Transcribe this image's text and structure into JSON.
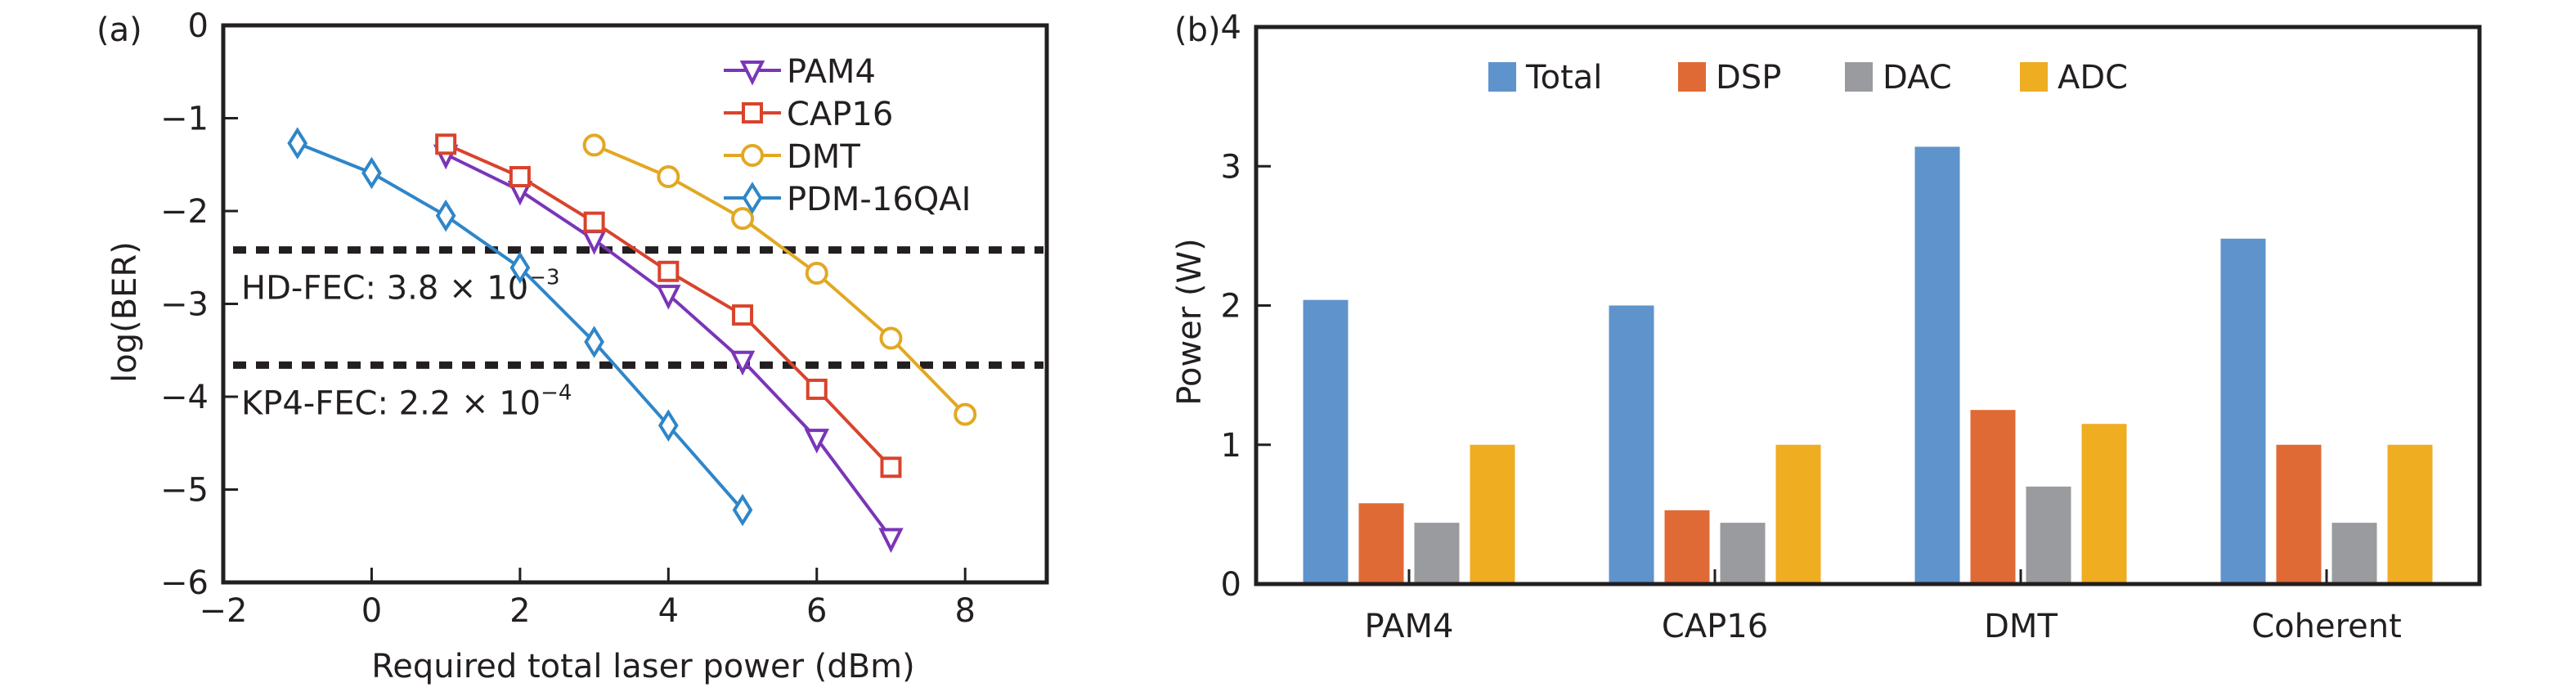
{
  "chart_data": [
    {
      "panel_label": "(a)",
      "type": "line",
      "title": "",
      "xlabel": "Required total laser power (dBm)",
      "ylabel": "log(BER)",
      "xlim": [
        -2,
        9.1
      ],
      "ylim": [
        -6,
        0
      ],
      "xticks": [
        -2,
        0,
        2,
        4,
        6,
        8
      ],
      "xtick_labels": [
        "−2",
        "0",
        "2",
        "4",
        "6",
        "8"
      ],
      "yticks": [
        0,
        -1,
        -2,
        -3,
        -4,
        -5,
        -6
      ],
      "ytick_labels": [
        "0",
        "−1",
        "−2",
        "−3",
        "−4",
        "−5",
        "−6"
      ],
      "grid": false,
      "legend_position": "top-right",
      "series": [
        {
          "name": "PAM4",
          "marker": "triangle-down",
          "color": "#7b35b8",
          "x": [
            1,
            2,
            3,
            4,
            5,
            6,
            7
          ],
          "y": [
            -1.39,
            -1.78,
            -2.31,
            -2.9,
            -3.61,
            -4.45,
            -5.52
          ]
        },
        {
          "name": "CAP16",
          "marker": "square",
          "color": "#d9432c",
          "x": [
            1,
            2,
            3,
            4,
            5,
            6,
            7
          ],
          "y": [
            -1.28,
            -1.63,
            -2.12,
            -2.65,
            -3.12,
            -3.92,
            -4.76
          ]
        },
        {
          "name": "DMT",
          "marker": "circle",
          "color": "#e2a823",
          "x": [
            3,
            4,
            5,
            6,
            7,
            8
          ],
          "y": [
            -1.29,
            -1.63,
            -2.08,
            -2.67,
            -3.37,
            -4.19
          ]
        },
        {
          "name": "PDM-16QAI",
          "marker": "diamond",
          "color": "#2f86c8",
          "x": [
            -1,
            0,
            1,
            2,
            3,
            4,
            5
          ],
          "y": [
            -1.27,
            -1.59,
            -2.05,
            -2.61,
            -3.41,
            -4.31,
            -5.22
          ]
        }
      ],
      "reference_lines": [
        {
          "name": "HD-FEC",
          "y": -2.42,
          "label_prefix": "HD-FEC: 3.8 × 10",
          "label_exp": "−3",
          "style": "dashed",
          "color": "#231f20"
        },
        {
          "name": "KP4-FEC",
          "y": -3.66,
          "label_prefix": "KP4-FEC: 2.2 × 10",
          "label_exp": "−4",
          "style": "dashed",
          "color": "#231f20"
        }
      ]
    },
    {
      "panel_label": "(b)",
      "type": "bar",
      "title": "",
      "xlabel": "",
      "ylabel": "Power (W)",
      "ylim": [
        0,
        4
      ],
      "yticks": [
        0,
        1,
        2,
        3,
        4
      ],
      "ytick_labels": [
        "0",
        "1",
        "2",
        "3",
        "4"
      ],
      "grid": false,
      "legend_position": "top-center",
      "categories": [
        "PAM4",
        "CAP16",
        "DMT",
        "Coherent"
      ],
      "series": [
        {
          "name": "Total",
          "color": "#5f93cb",
          "values": [
            2.04,
            2.0,
            3.14,
            2.48
          ]
        },
        {
          "name": "DSP",
          "color": "#e06a35",
          "values": [
            0.58,
            0.53,
            1.25,
            1.0
          ]
        },
        {
          "name": "DAC",
          "color": "#9a9b9e",
          "values": [
            0.44,
            0.44,
            0.7,
            0.44
          ]
        },
        {
          "name": "ADC",
          "color": "#efad22",
          "values": [
            1.0,
            1.0,
            1.15,
            1.0
          ]
        }
      ]
    }
  ]
}
